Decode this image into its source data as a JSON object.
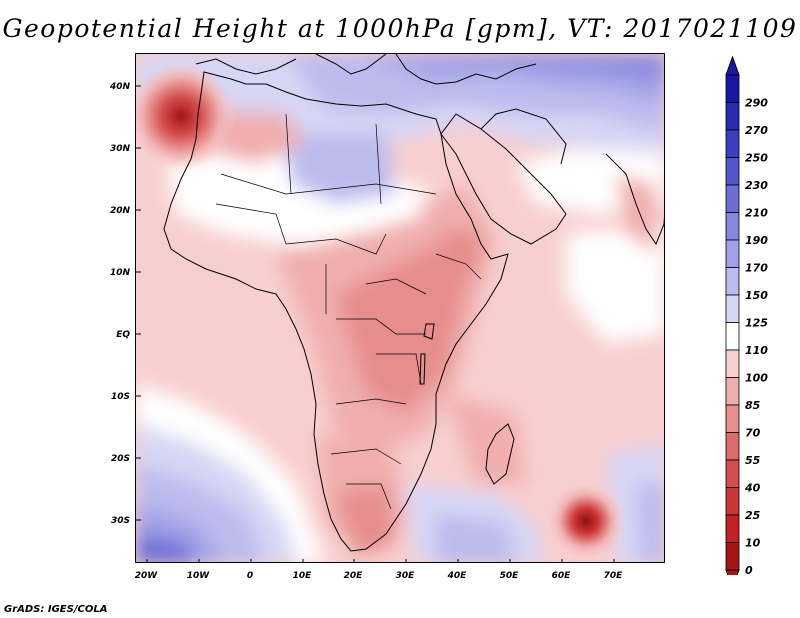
{
  "title": "Geopotential Height at 1000hPa [gpm], VT: 2017021109",
  "map": {
    "lat_labels": [
      "40N",
      "30N",
      "20N",
      "10N",
      "EQ",
      "10S",
      "20S",
      "30S"
    ],
    "lon_labels": [
      "20W",
      "10W",
      "0",
      "10E",
      "20E",
      "30E",
      "40E",
      "50E",
      "60E",
      "70E"
    ]
  },
  "colorbar": {
    "levels": [
      "290",
      "270",
      "250",
      "230",
      "210",
      "190",
      "170",
      "150",
      "125",
      "110",
      "100",
      "85",
      "70",
      "55",
      "40",
      "25",
      "10",
      "0"
    ],
    "colors": [
      "#1a17a6",
      "#2a2cb4",
      "#3c3fc1",
      "#5455cc",
      "#6d6dd6",
      "#8686de",
      "#a0a0e6",
      "#bbbbee",
      "#d6d6f5",
      "#ffffff",
      "#f8cfcf",
      "#f0aeae",
      "#e68d8d",
      "#dc6c6c",
      "#d44e4e",
      "#cc3535",
      "#c42222",
      "#a81414"
    ]
  },
  "credit": "GrADS: IGES/COLA"
}
